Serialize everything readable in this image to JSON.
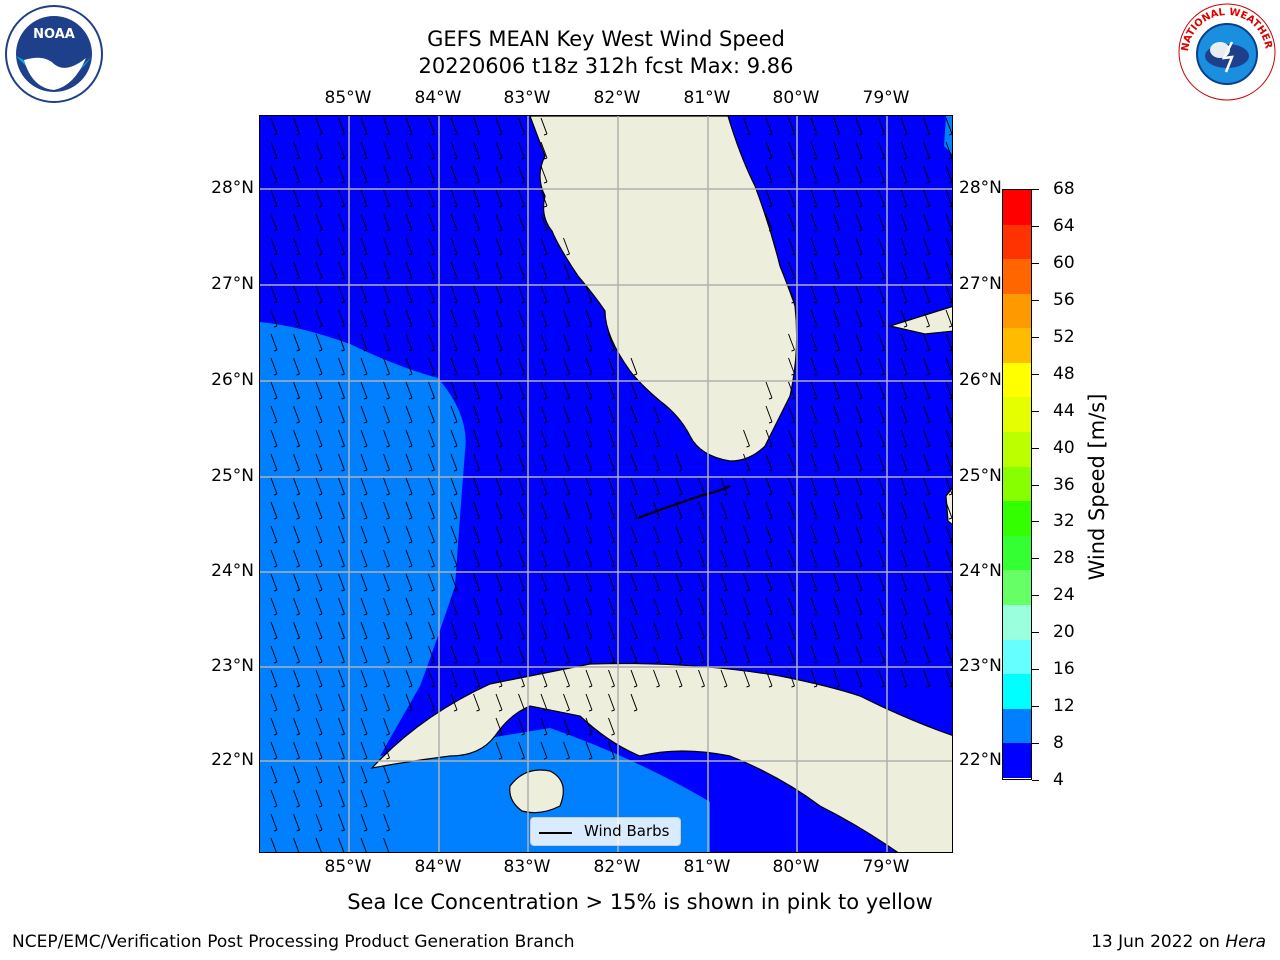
{
  "title": {
    "line1": "GEFS MEAN Key West Wind Speed",
    "line2": "20220606 t18z 312h fcst   Max: 9.86"
  },
  "logos": {
    "left": "noaa-logo",
    "left_text": "NOAA",
    "right": "nws-logo",
    "right_text": "NATIONAL WEATHER SERVICE"
  },
  "map": {
    "lon_labels": [
      "85°W",
      "84°W",
      "83°W",
      "82°W",
      "81°W",
      "80°W",
      "79°W"
    ],
    "lat_labels": [
      "28°N",
      "27°N",
      "26°N",
      "25°N",
      "24°N",
      "23°N",
      "22°N"
    ],
    "ocean_color_low": "#0000ff",
    "ocean_color_mid": "#0080ff",
    "land_color": "#eeeedc",
    "grid_color": "#b0b0b0"
  },
  "colorbar": {
    "label": "Wind Speed [m/s]",
    "ticks": [
      "68",
      "64",
      "60",
      "56",
      "52",
      "48",
      "44",
      "40",
      "36",
      "32",
      "28",
      "24",
      "20",
      "16",
      "12",
      "8",
      "4"
    ],
    "colors": [
      "#ff0000",
      "#ff3300",
      "#ff6600",
      "#ff9900",
      "#ffbb00",
      "#ffff00",
      "#e6ff00",
      "#bbff00",
      "#88ff00",
      "#33ff00",
      "#33ff33",
      "#66ff66",
      "#99ffdd",
      "#66ffff",
      "#00ffff",
      "#0080ff",
      "#0000ff"
    ]
  },
  "legend": {
    "label": "Wind Barbs"
  },
  "subcaption": "Sea Ice Concentration > 15% is shown in pink to yellow",
  "footer": {
    "left": "NCEP/EMC/Verification Post Processing Product Generation Branch",
    "right_date": "13 Jun 2022 on ",
    "right_host": "Hera"
  }
}
